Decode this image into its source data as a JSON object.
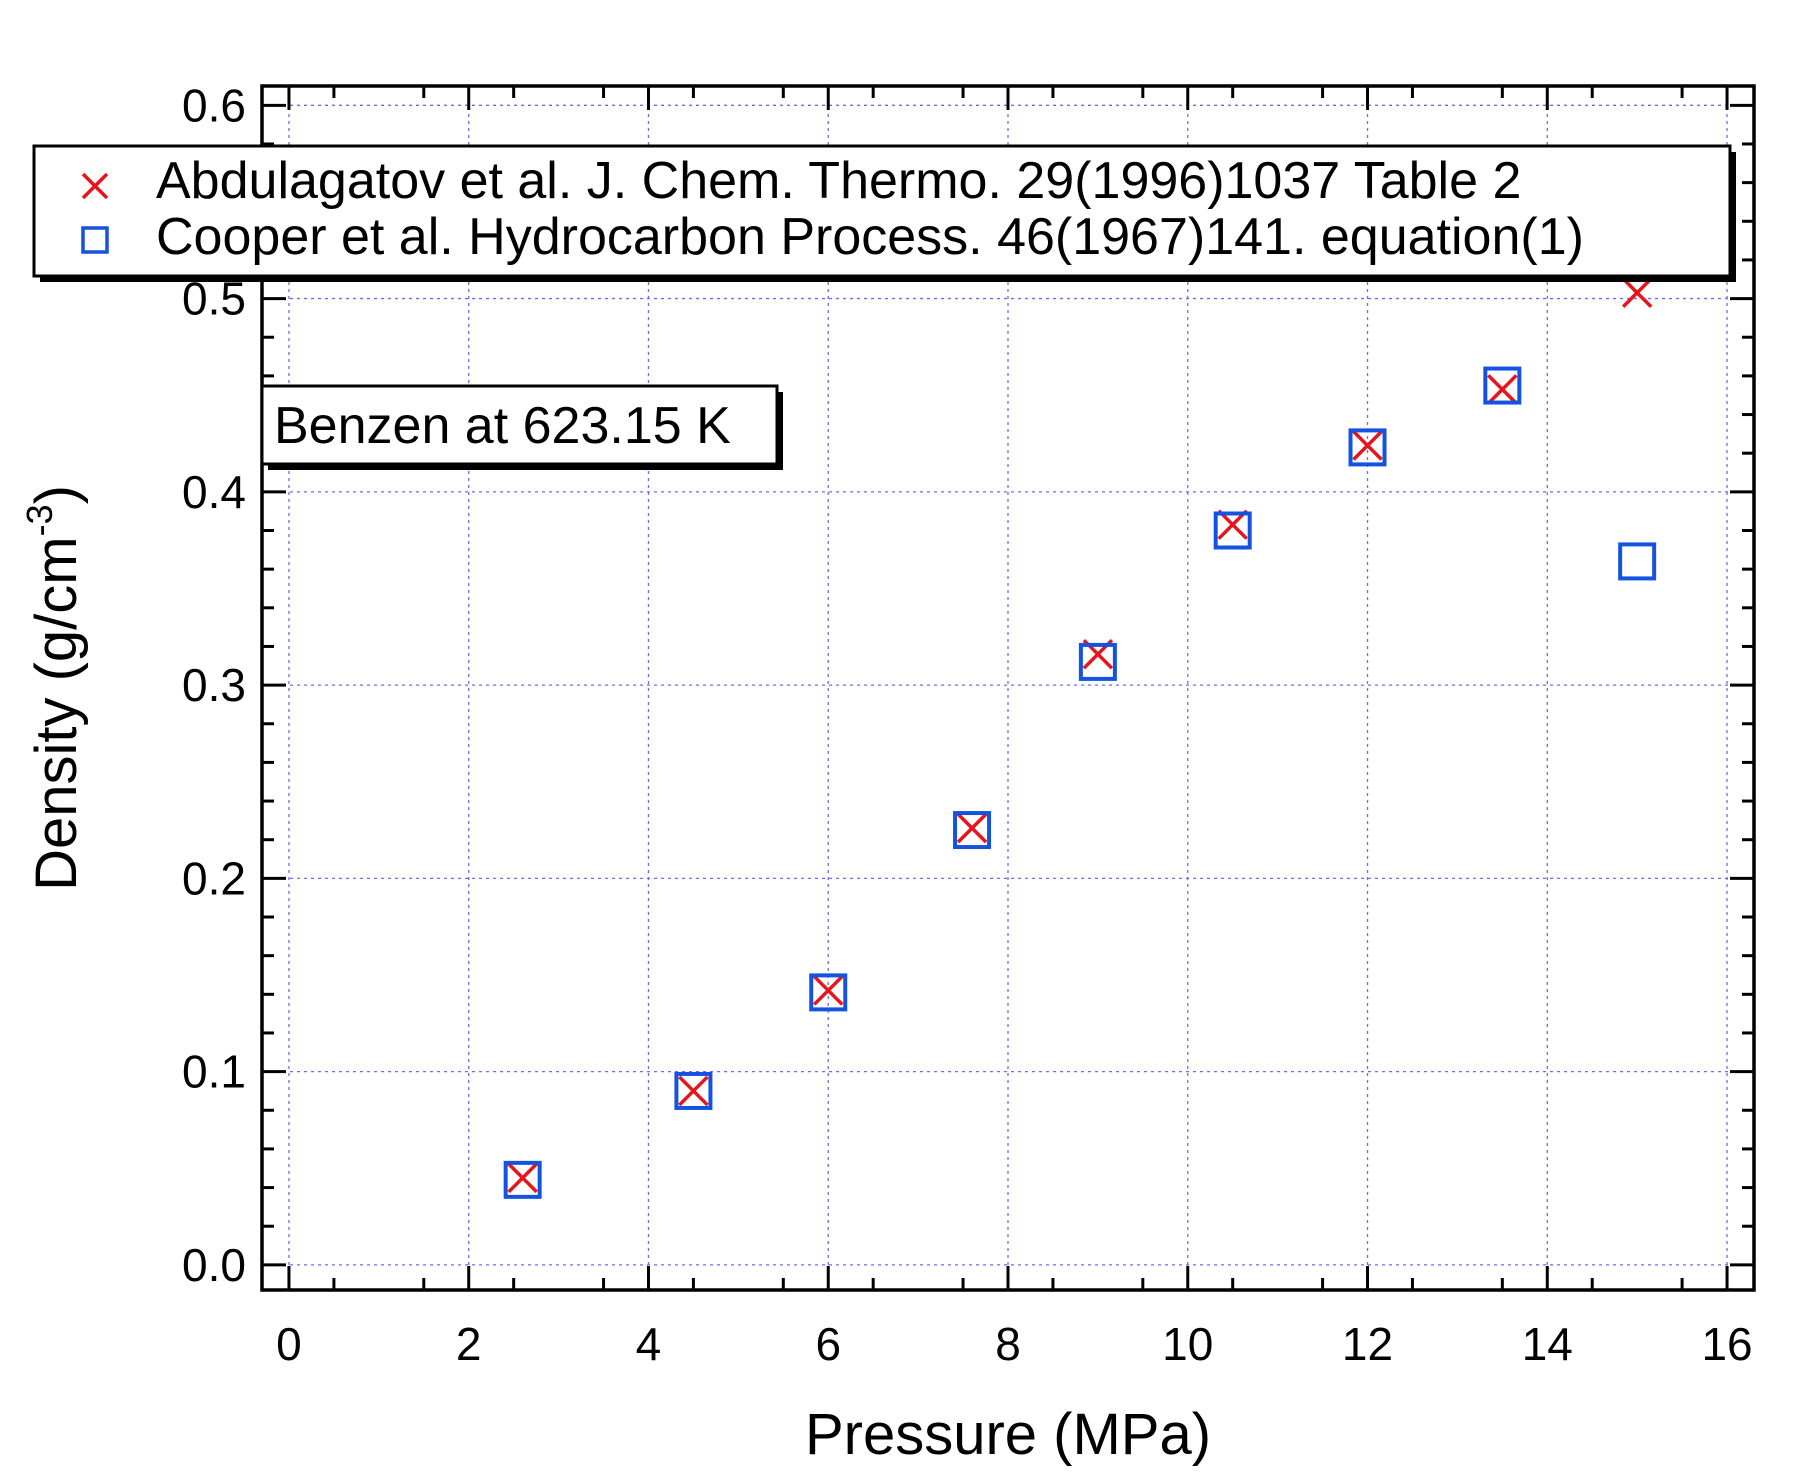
{
  "chart_data": {
    "type": "scatter",
    "title": "",
    "xlabel": "Pressure (MPa)",
    "ylabel": "Density (g/cm",
    "ylabel_superscript": "-3",
    "ylabel_suffix": ")",
    "xlim": [
      -0.3,
      16.3
    ],
    "ylim": [
      -0.013,
      0.61
    ],
    "xticks": [
      0,
      2,
      4,
      6,
      8,
      10,
      12,
      14,
      16
    ],
    "xtick_labels": [
      "0",
      "2",
      "4",
      "6",
      "8",
      "10",
      "12",
      "14",
      "16"
    ],
    "yticks": [
      0.0,
      0.1,
      0.2,
      0.3,
      0.4,
      0.5,
      0.6
    ],
    "ytick_labels": [
      "0.0",
      "0.1",
      "0.2",
      "0.3",
      "0.4",
      "0.5",
      "0.6"
    ],
    "grid": true,
    "legend_position": "top",
    "annotation": "Benzen at 623.15 K",
    "series": [
      {
        "name": "Abdulagatov et al. J. Chem. Thermo. 29(1996)1037 Table 2",
        "marker": "x",
        "color": "#e8141c",
        "x": [
          2.6,
          4.5,
          6.0,
          7.6,
          9.0,
          10.5,
          12.0,
          13.5,
          15.0
        ],
        "y": [
          0.045,
          0.09,
          0.142,
          0.226,
          0.316,
          0.383,
          0.424,
          0.453,
          0.503
        ]
      },
      {
        "name": "Cooper et al. Hydrocarbon Process. 46(1967)141. equation(1)",
        "marker": "square",
        "color": "#1452e0",
        "x": [
          2.6,
          4.5,
          6.0,
          7.6,
          9.0,
          10.5,
          12.0,
          13.5,
          15.0
        ],
        "y": [
          0.044,
          0.09,
          0.141,
          0.225,
          0.312,
          0.38,
          0.423,
          0.455,
          0.364
        ]
      }
    ]
  }
}
